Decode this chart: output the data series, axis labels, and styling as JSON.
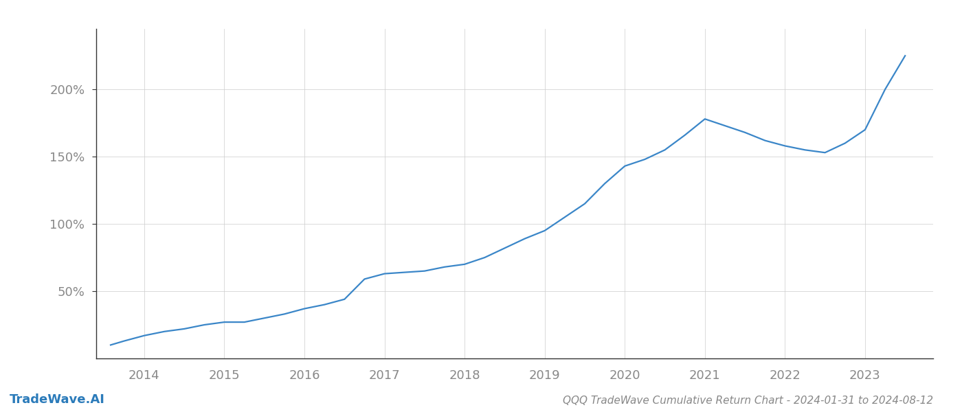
{
  "title": "QQQ TradeWave Cumulative Return Chart - 2024-01-31 to 2024-08-12",
  "watermark": "TradeWave.AI",
  "line_color": "#3a86c8",
  "background_color": "#ffffff",
  "grid_color": "#cccccc",
  "x_years": [
    2014,
    2015,
    2016,
    2017,
    2018,
    2019,
    2020,
    2021,
    2022,
    2023
  ],
  "x_values": [
    2013.58,
    2013.75,
    2014.0,
    2014.25,
    2014.5,
    2014.75,
    2015.0,
    2015.25,
    2015.5,
    2015.75,
    2016.0,
    2016.25,
    2016.5,
    2016.75,
    2017.0,
    2017.25,
    2017.5,
    2017.75,
    2018.0,
    2018.25,
    2018.5,
    2018.75,
    2019.0,
    2019.25,
    2019.5,
    2019.75,
    2020.0,
    2020.25,
    2020.5,
    2020.75,
    2021.0,
    2021.25,
    2021.5,
    2021.75,
    2022.0,
    2022.25,
    2022.5,
    2022.75,
    2023.0,
    2023.25,
    2023.5
  ],
  "y_values": [
    10,
    13,
    17,
    20,
    22,
    25,
    27,
    27,
    30,
    33,
    37,
    40,
    44,
    59,
    63,
    64,
    65,
    68,
    70,
    75,
    82,
    89,
    95,
    105,
    115,
    130,
    143,
    148,
    155,
    166,
    178,
    173,
    168,
    162,
    158,
    155,
    153,
    160,
    170,
    200,
    225
  ],
  "yticks": [
    50,
    100,
    150,
    200
  ],
  "ytick_labels": [
    "50%",
    "100%",
    "150%",
    "200%"
  ],
  "xlim": [
    2013.4,
    2023.85
  ],
  "ylim": [
    0,
    245
  ],
  "title_fontsize": 11,
  "tick_fontsize": 13,
  "watermark_fontsize": 13,
  "line_width": 1.6,
  "spine_color": "#333333"
}
